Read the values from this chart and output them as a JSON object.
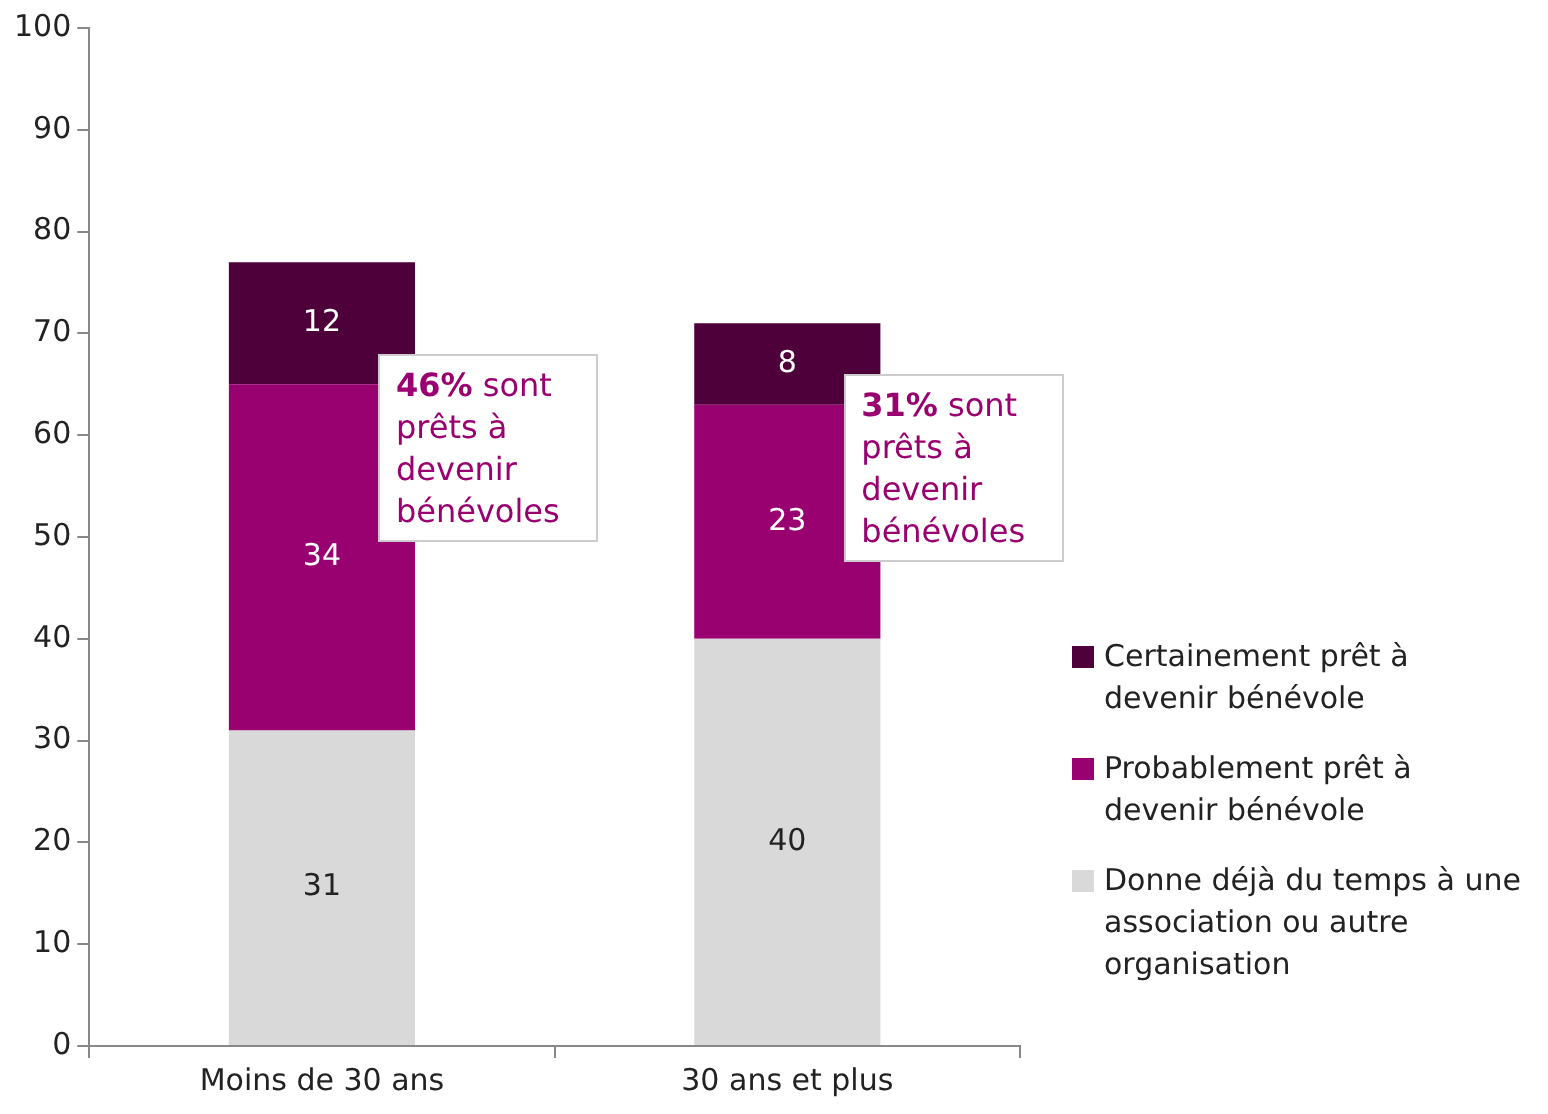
{
  "chart_data": {
    "type": "bar",
    "stacked": true,
    "categories": [
      "Moins de 30 ans",
      "30 ans et plus"
    ],
    "series": [
      {
        "name": "Donne déjà du temps à une association ou autre organisation",
        "color": "#d9d9d9",
        "values": [
          31,
          40
        ]
      },
      {
        "name": "Probablement prêt à devenir bénévole",
        "color": "#990070",
        "values": [
          34,
          23
        ]
      },
      {
        "name": "Certainement prêt à devenir bénévole",
        "color": "#4d0039",
        "values": [
          12,
          8
        ]
      }
    ],
    "ylim": [
      0,
      100
    ],
    "yticks": [
      0,
      10,
      20,
      30,
      40,
      50,
      60,
      70,
      80,
      90,
      100
    ],
    "grid": false,
    "legend": "right",
    "data_labels": true,
    "annotations": [
      "46% sont prêts à devenir bénévoles",
      "31% sont prêts à devenir bénévoles"
    ]
  }
}
